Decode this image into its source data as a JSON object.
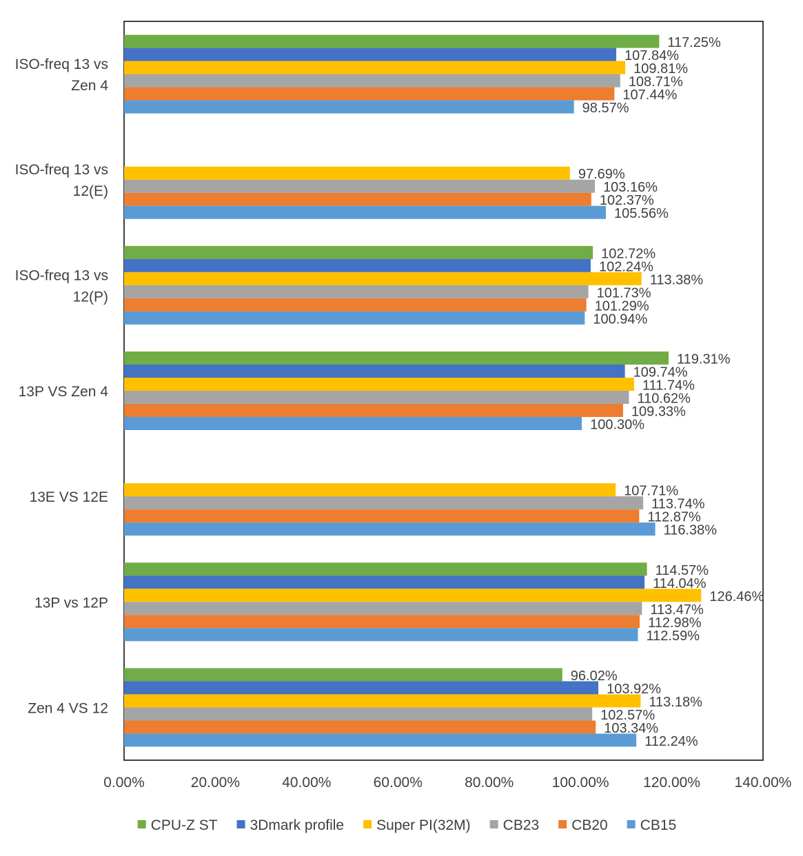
{
  "chart_data": {
    "type": "bar",
    "orientation": "horizontal",
    "title": "",
    "xlabel": "",
    "ylabel": "",
    "xlim": [
      0,
      140
    ],
    "x_ticks": [
      "0.00%",
      "20.00%",
      "40.00%",
      "60.00%",
      "80.00%",
      "100.00%",
      "120.00%",
      "140.00%"
    ],
    "x_tick_values": [
      0,
      20,
      40,
      60,
      80,
      100,
      120,
      140
    ],
    "grid": false,
    "legend_position": "bottom",
    "categories": [
      [
        "ISO-freq 13 vs",
        "Zen 4"
      ],
      [
        "ISO-freq 13 vs",
        "12(E)"
      ],
      [
        "ISO-freq 13 vs",
        "12(P)"
      ],
      [
        "13P VS Zen 4"
      ],
      [
        "13E VS 12E"
      ],
      [
        "13P vs 12P"
      ],
      [
        "Zen 4 VS 12"
      ]
    ],
    "series": [
      {
        "name": "CPU-Z ST",
        "color": "#70ad47",
        "values": [
          117.25,
          null,
          102.72,
          119.31,
          null,
          114.57,
          96.02
        ],
        "labels": [
          "117.25%",
          null,
          "102.72%",
          "119.31%",
          null,
          "114.57%",
          "96.02%"
        ]
      },
      {
        "name": "3Dmark profile",
        "color": "#4472c4",
        "values": [
          107.84,
          null,
          102.24,
          109.74,
          null,
          114.04,
          103.92
        ],
        "labels": [
          "107.84%",
          null,
          "102.24%",
          "109.74%",
          null,
          "114.04%",
          "103.92%"
        ]
      },
      {
        "name": "Super PI(32M)",
        "color": "#ffc000",
        "values": [
          109.81,
          97.69,
          113.38,
          111.74,
          107.71,
          126.46,
          113.18
        ],
        "labels": [
          "109.81%",
          "97.69%",
          "113.38%",
          "111.74%",
          "107.71%",
          "126.46%",
          "113.18%"
        ]
      },
      {
        "name": "CB23",
        "color": "#a5a5a5",
        "values": [
          108.71,
          103.16,
          101.73,
          110.62,
          113.74,
          113.47,
          102.57
        ],
        "labels": [
          "108.71%",
          "103.16%",
          "101.73%",
          "110.62%",
          "113.74%",
          "113.47%",
          "102.57%"
        ]
      },
      {
        "name": "CB20",
        "color": "#ed7d31",
        "values": [
          107.44,
          102.37,
          101.29,
          109.33,
          112.87,
          112.98,
          103.34
        ],
        "labels": [
          "107.44%",
          "102.37%",
          "101.29%",
          "109.33%",
          "112.87%",
          "112.98%",
          "103.34%"
        ]
      },
      {
        "name": "CB15",
        "color": "#5b9bd5",
        "values": [
          98.57,
          105.56,
          100.94,
          100.3,
          116.38,
          112.59,
          112.24
        ],
        "labels": [
          "98.57%",
          "105.56%",
          "100.94%",
          "100.30%",
          "116.38%",
          "112.59%",
          "112.24%"
        ]
      }
    ]
  }
}
